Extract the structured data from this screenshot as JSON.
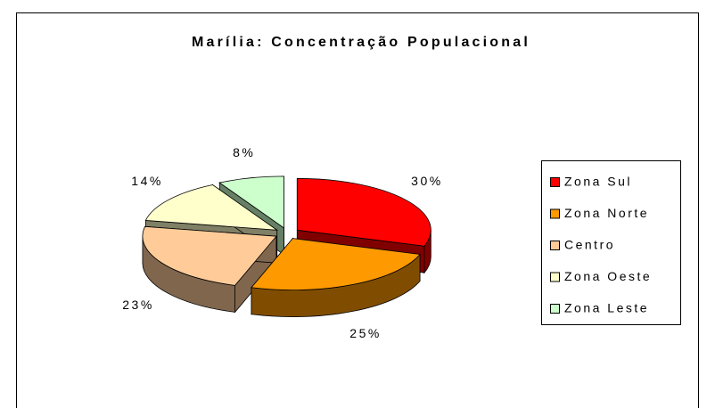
{
  "chart_data": {
    "type": "pie",
    "title": "Marília: Concentração Populacional",
    "categories": [
      "Zona Sul",
      "Zona Norte",
      "Centro",
      "Zona Oeste",
      "Zona Leste"
    ],
    "values": [
      30,
      25,
      23,
      14,
      8
    ],
    "value_labels": [
      "30%",
      "25%",
      "23%",
      "14%",
      "8%"
    ],
    "colors": [
      "#ff0000",
      "#ff9900",
      "#ffcc99",
      "#ffffcc",
      "#ccffcc"
    ],
    "legend": "right"
  }
}
